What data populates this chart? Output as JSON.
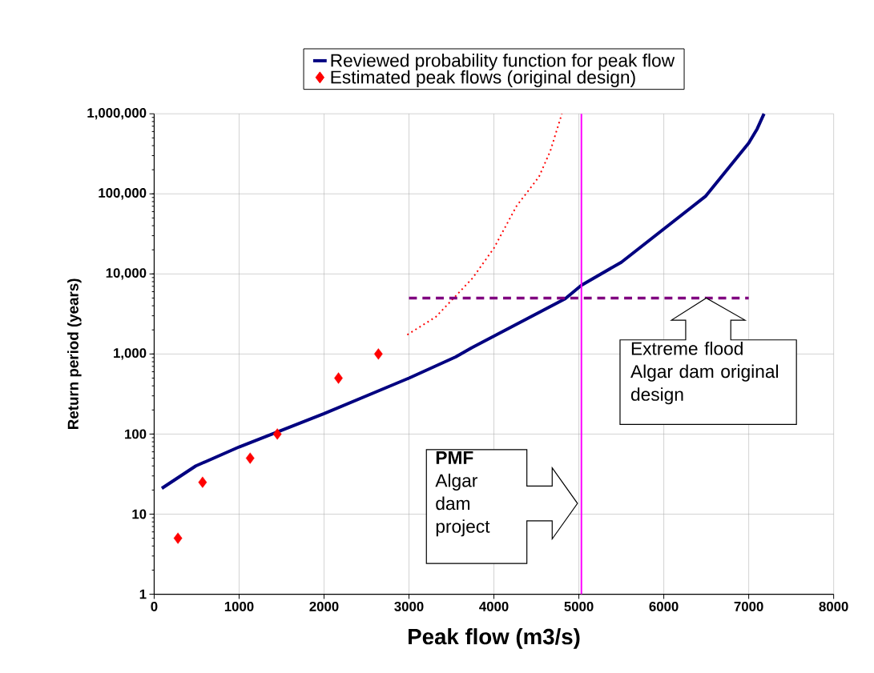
{
  "chart_data": {
    "type": "line",
    "xlabel": "Peak flow (m3/s)",
    "ylabel": "Return period (years)",
    "xlim": [
      0,
      8000
    ],
    "xticks": [
      0,
      1000,
      2000,
      3000,
      4000,
      5000,
      6000,
      7000,
      8000
    ],
    "ylim": [
      1,
      1000000
    ],
    "yticks": [
      {
        "value": 1,
        "label": "1"
      },
      {
        "value": 10,
        "label": "10"
      },
      {
        "value": 100,
        "label": "100"
      },
      {
        "value": 1000,
        "label": "1,000"
      },
      {
        "value": 10000,
        "label": "10,000"
      },
      {
        "value": 100000,
        "label": "100,000"
      },
      {
        "value": 1000000,
        "label": "1,000,000"
      }
    ],
    "log": "y",
    "grid": true,
    "legend": "top",
    "series": [
      {
        "name": "Reviewed probability function for peak flow",
        "line_style": "solid",
        "color": "#000080",
        "x": [
          90,
          490,
          1000,
          2000,
          3000,
          3550,
          3740,
          4840,
          5030,
          5500,
          6490,
          7000,
          7100,
          7180
        ],
        "values": [
          21,
          40,
          69,
          180,
          500,
          920,
          1200,
          4900,
          7200,
          14000,
          93000,
          430000,
          650000,
          1000000
        ]
      },
      {
        "name": "Estimated peak flows (original design)",
        "type": "scatter",
        "marker": "diamond",
        "color": "#ff0000",
        "x": [
          280,
          570,
          1130,
          1450,
          2170,
          2640
        ],
        "values": [
          5,
          25,
          50,
          100,
          500,
          1000
        ]
      },
      {
        "line_style": "dotted",
        "color": "#ff0000",
        "x": [
          2980,
          3315,
          3550,
          3750,
          4000,
          4265,
          4530,
          4665,
          4800
        ],
        "values": [
          1740,
          2900,
          5300,
          8900,
          21000,
          70000,
          163000,
          345000,
          1000000
        ]
      },
      {
        "line_style": "dashed",
        "color": "#800080",
        "x": [
          3000,
          7000
        ],
        "values": [
          5000,
          5000
        ]
      }
    ],
    "ref_lines": [
      {
        "axis": "x",
        "value": 5030,
        "color": "#ff00ff",
        "line_style": "solid"
      }
    ],
    "annotations": [
      "**PMF** Algar dam project",
      {
        "text": "Extreme flood Algar dam original design",
        "x": 6500,
        "y": 5000
      }
    ]
  }
}
